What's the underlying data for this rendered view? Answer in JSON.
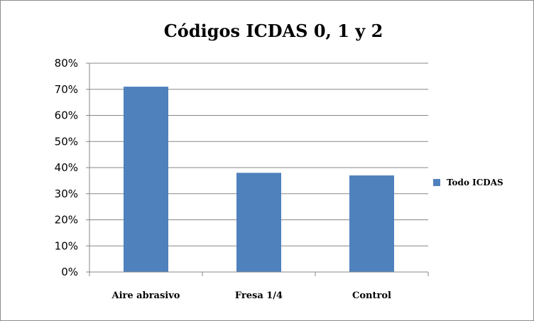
{
  "chart_data": {
    "type": "bar",
    "title": "Códigos ICDAS 0, 1 y 2",
    "categories": [
      "Aire abrasivo",
      "Fresa 1/4",
      "Control"
    ],
    "series": [
      {
        "name": "Todo ICDAS",
        "values": [
          71,
          38,
          37
        ],
        "color": "#4f81bd"
      }
    ],
    "yticks": [
      "0%",
      "10%",
      "20%",
      "30%",
      "40%",
      "50%",
      "60%",
      "70%",
      "80%"
    ],
    "ylim": [
      0,
      80
    ],
    "grid": true,
    "legend_position": "right"
  }
}
